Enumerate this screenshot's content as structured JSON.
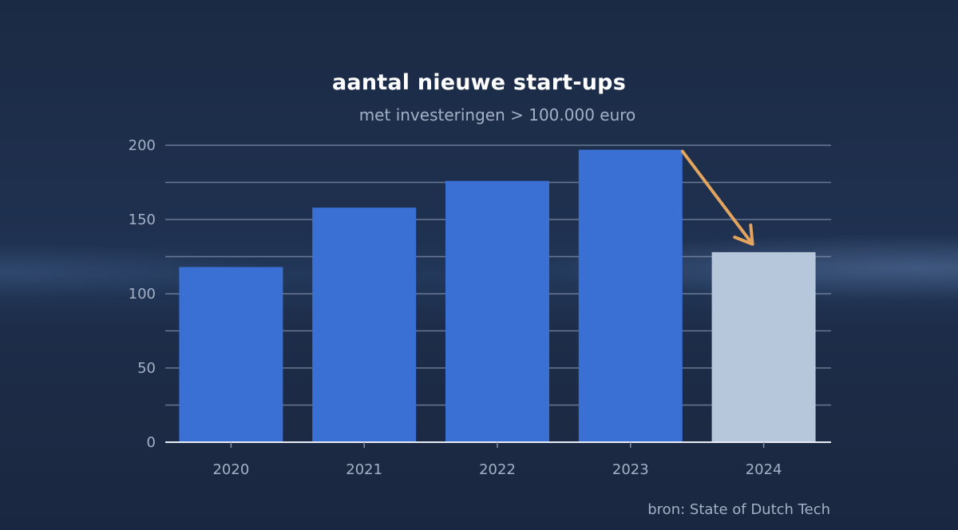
{
  "chart_data": {
    "type": "bar",
    "title": "aantal nieuwe start-ups",
    "subtitle": "met investeringen > 100.000 euro",
    "categories": [
      "2020",
      "2021",
      "2022",
      "2023",
      "2024"
    ],
    "values": [
      118,
      158,
      176,
      197,
      128
    ],
    "ylim": [
      0,
      200
    ],
    "yticks": [
      0,
      50,
      100,
      150,
      200
    ],
    "grid": true,
    "xlabel": "",
    "ylabel": "",
    "annotation": "arrow-from-2023-to-2024",
    "source": "bron: State of Dutch Tech"
  },
  "colors": {
    "bar": "#3a6fd3",
    "bar_highlight": "#b6c6db",
    "arrow": "#e3a55e",
    "grid": "#8391ab",
    "axis": "#e8ecf3"
  }
}
